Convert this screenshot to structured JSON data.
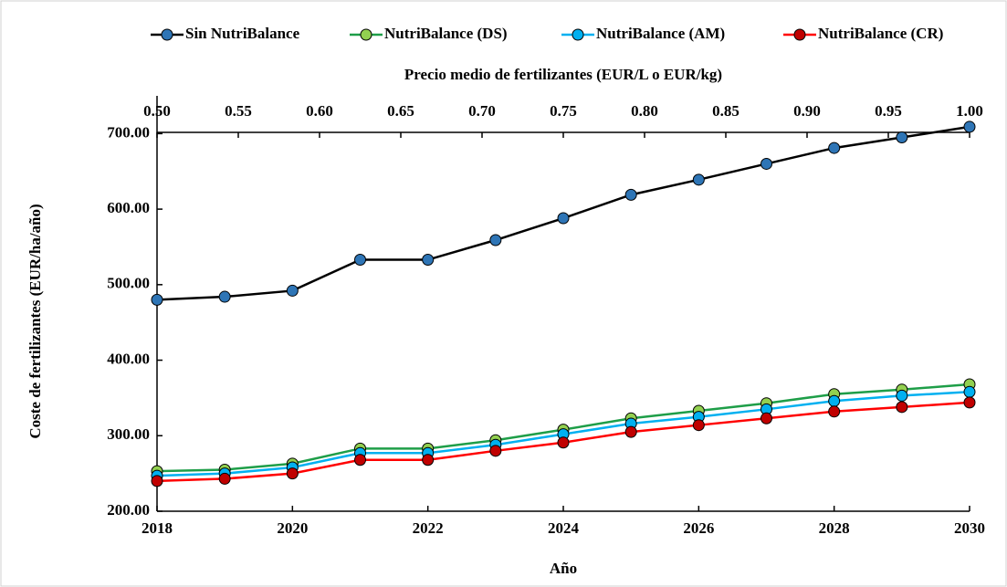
{
  "chart_data": {
    "type": "line",
    "xlabel": "Año",
    "ylabel": "Coste de fertilizantes (EUR/ha/año)",
    "x2label": "Precio medio de fertilizantes (EUR/L o EUR/kg)",
    "x": [
      2018,
      2019,
      2020,
      2021,
      2022,
      2023,
      2024,
      2025,
      2026,
      2027,
      2028,
      2029,
      2030
    ],
    "xlim": [
      2018,
      2030
    ],
    "xticks": [
      2018,
      2020,
      2022,
      2024,
      2026,
      2028,
      2030
    ],
    "x2lim": [
      0.5,
      1.0
    ],
    "x2ticks": [
      {
        "value": 0.5,
        "label": "0.50"
      },
      {
        "value": 0.55,
        "label": "0.55"
      },
      {
        "value": 0.6,
        "label": "0.60"
      },
      {
        "value": 0.65,
        "label": "0.65"
      },
      {
        "value": 0.7,
        "label": "0.70"
      },
      {
        "value": 0.75,
        "label": "0.75"
      },
      {
        "value": 0.8,
        "label": "0.80"
      },
      {
        "value": 0.85,
        "label": "0.85"
      },
      {
        "value": 0.9,
        "label": "0.90"
      },
      {
        "value": 0.95,
        "label": "0.95"
      },
      {
        "value": 1.0,
        "label": "1.00"
      }
    ],
    "ylim": [
      200,
      750
    ],
    "yticks": [
      {
        "value": 200,
        "label": "200.00"
      },
      {
        "value": 300,
        "label": "300.00"
      },
      {
        "value": 400,
        "label": "400.00"
      },
      {
        "value": 500,
        "label": "500.00"
      },
      {
        "value": 600,
        "label": "600.00"
      },
      {
        "value": 700,
        "label": "700.00"
      }
    ],
    "legend": "top",
    "series": [
      {
        "name": "Sin NutriBalance",
        "color": "#000000",
        "marker": "#2e75b6",
        "values": [
          480,
          484,
          492,
          533,
          533,
          559,
          588,
          619,
          639,
          660,
          681,
          695,
          709
        ]
      },
      {
        "name": "NutriBalance (DS)",
        "color": "#1e9e48",
        "marker": "#92d050",
        "values": [
          253,
          255,
          263,
          283,
          283,
          294,
          308,
          323,
          333,
          343,
          355,
          361,
          368
        ]
      },
      {
        "name": "NutriBalance (AM)",
        "color": "#00b0f0",
        "marker": "#00b0f0",
        "values": [
          247,
          250,
          258,
          277,
          277,
          288,
          302,
          316,
          325,
          335,
          346,
          353,
          358
        ]
      },
      {
        "name": "NutriBalance (CR)",
        "color": "#ff0000",
        "marker": "#c00000",
        "values": [
          240,
          243,
          250,
          268,
          268,
          280,
          291,
          305,
          314,
          323,
          332,
          338,
          344
        ]
      }
    ]
  }
}
